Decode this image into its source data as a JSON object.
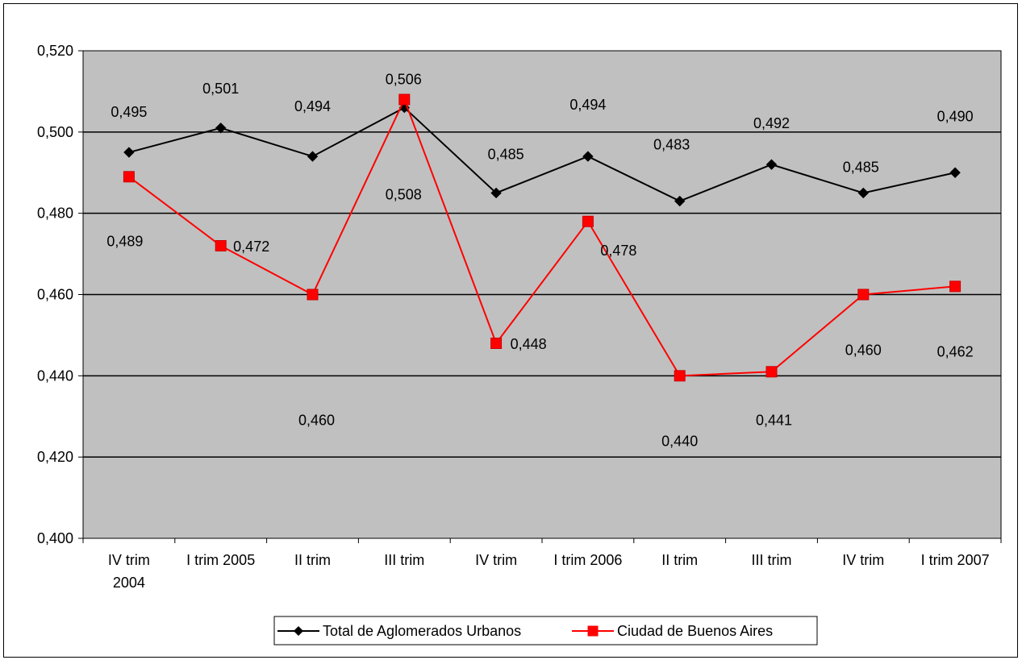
{
  "chart_data": {
    "type": "line",
    "categories": [
      "IV trim 2004",
      "I trim 2005",
      "II trim",
      "III trim",
      "IV trim",
      "I trim 2006",
      "II trim",
      "III trim",
      "IV trim",
      "I trim 2007"
    ],
    "series": [
      {
        "name": "Total de Aglomerados Urbanos",
        "values": [
          0.495,
          0.501,
          0.494,
          0.506,
          0.485,
          0.494,
          0.483,
          0.492,
          0.485,
          0.49
        ],
        "labels": [
          "0,495",
          "0,501",
          "0,494",
          "0,506",
          "0,485",
          "0,494",
          "0,483",
          "0,492",
          "0,485",
          "0,490"
        ],
        "color": "#000000",
        "marker": "diamond"
      },
      {
        "name": "Ciudad de Buenos Aires",
        "values": [
          0.489,
          0.472,
          0.46,
          0.508,
          0.448,
          0.478,
          0.44,
          0.441,
          0.46,
          0.462
        ],
        "labels": [
          "0,489",
          "0,472",
          "0,460",
          "0,508",
          "0,448",
          "0,478",
          "0,440",
          "0,441",
          "0,460",
          "0,462"
        ],
        "color": "#ff0000",
        "marker": "square"
      }
    ],
    "ylim": [
      0.4,
      0.52
    ],
    "yticks": [
      0.4,
      0.42,
      0.44,
      0.46,
      0.48,
      0.5,
      0.52
    ],
    "ytick_labels": [
      "0,400",
      "0,420",
      "0,440",
      "0,460",
      "0,480",
      "0,500",
      "0,520"
    ],
    "grid": true,
    "plot_background": "#c0c0c0",
    "legend_position": "bottom",
    "title": "",
    "xlabel": "",
    "ylabel": ""
  }
}
